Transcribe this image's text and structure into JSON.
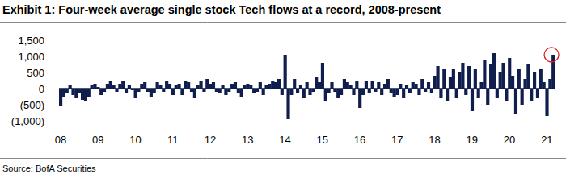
{
  "chart_data": {
    "type": "bar",
    "title": "Exhibit 1: Four-week average single stock Tech flows at a record, 2008-present",
    "source": "Source: BofA Securities",
    "color": "#0f1e4d",
    "ylim": [
      -1000,
      1500
    ],
    "yticks": [
      {
        "value": 1500,
        "label": "1,500"
      },
      {
        "value": 1000,
        "label": "1,000"
      },
      500,
      0,
      {
        "value": -500,
        "label": "(500)"
      },
      {
        "value": -1000,
        "label": "(1,000)"
      }
    ],
    "grid": false,
    "categories": [
      "08",
      null,
      null,
      null,
      null,
      null,
      null,
      null,
      null,
      null,
      null,
      null,
      "09",
      null,
      null,
      null,
      null,
      null,
      null,
      null,
      null,
      null,
      null,
      null,
      "10",
      null,
      null,
      null,
      null,
      null,
      null,
      null,
      null,
      null,
      null,
      null,
      "11",
      null,
      null,
      null,
      null,
      null,
      null,
      null,
      null,
      null,
      null,
      null,
      "12",
      null,
      null,
      null,
      null,
      null,
      null,
      null,
      null,
      null,
      null,
      null,
      "13",
      null,
      null,
      null,
      null,
      null,
      null,
      null,
      null,
      null,
      null,
      null,
      "14",
      null,
      null,
      null,
      null,
      null,
      null,
      null,
      null,
      null,
      null,
      null,
      "15",
      null,
      null,
      null,
      null,
      null,
      null,
      null,
      null,
      null,
      null,
      null,
      "16",
      null,
      null,
      null,
      null,
      null,
      null,
      null,
      null,
      null,
      null,
      null,
      "17",
      null,
      null,
      null,
      null,
      null,
      null,
      null,
      null,
      null,
      null,
      null,
      "18",
      null,
      null,
      null,
      null,
      null,
      null,
      null,
      null,
      null,
      null,
      null,
      "19",
      null,
      null,
      null,
      null,
      null,
      null,
      null,
      null,
      null,
      null,
      null,
      "20",
      null,
      null,
      null,
      null,
      null,
      null,
      null,
      null,
      null,
      null,
      null,
      "21",
      null,
      null
    ],
    "values": [
      -550,
      -250,
      -150,
      100,
      -200,
      -300,
      -150,
      -350,
      -400,
      -250,
      100,
      150,
      50,
      -200,
      -100,
      150,
      250,
      100,
      -100,
      150,
      250,
      -150,
      100,
      -50,
      -300,
      -100,
      150,
      200,
      -100,
      -250,
      -150,
      200,
      100,
      -100,
      250,
      150,
      -200,
      100,
      150,
      -200,
      250,
      200,
      -100,
      -300,
      100,
      250,
      -100,
      300,
      150,
      200,
      -100,
      -150,
      100,
      -200,
      -100,
      150,
      200,
      -150,
      -250,
      100,
      150,
      100,
      -150,
      -100,
      200,
      -200,
      100,
      150,
      250,
      200,
      300,
      -200,
      1050,
      -950,
      -200,
      300,
      -150,
      100,
      -300,
      200,
      -200,
      -100,
      350,
      200,
      800,
      -400,
      -150,
      200,
      -100,
      -300,
      -200,
      300,
      200,
      100,
      -200,
      250,
      -600,
      -200,
      250,
      -150,
      250,
      -100,
      200,
      -200,
      150,
      300,
      -150,
      -250,
      -200,
      150,
      -300,
      100,
      -150,
      200,
      150,
      -200,
      300,
      -100,
      200,
      -150,
      400,
      700,
      -300,
      600,
      -400,
      350,
      600,
      -300,
      500,
      800,
      -200,
      700,
      -700,
      600,
      -300,
      200,
      900,
      -500,
      750,
      1100,
      -300,
      500,
      800,
      -400,
      950,
      400,
      -800,
      600,
      -500,
      300,
      750,
      -400,
      500,
      -300,
      600,
      200,
      -850,
      300,
      1050
    ]
  }
}
